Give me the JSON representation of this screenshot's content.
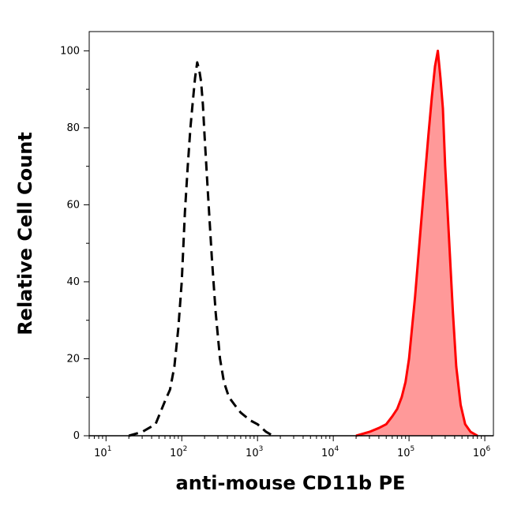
{
  "chart_data": {
    "type": "area",
    "xlabel": "anti-mouse CD11b PE",
    "ylabel": "Relative Cell Count",
    "xscale": "log",
    "xlim": [
      6,
      1300000
    ],
    "ylim": [
      0,
      105
    ],
    "grid": false,
    "x_ticks": [
      {
        "base": "10",
        "exp": "1",
        "value": 10
      },
      {
        "base": "10",
        "exp": "2",
        "value": 100
      },
      {
        "base": "10",
        "exp": "3",
        "value": 1000
      },
      {
        "base": "10",
        "exp": "4",
        "value": 10000
      },
      {
        "base": "10",
        "exp": "5",
        "value": 100000
      },
      {
        "base": "10",
        "exp": "6",
        "value": 1000000
      }
    ],
    "y_ticks": [
      "0",
      "20",
      "40",
      "60",
      "80",
      "100"
    ],
    "series": [
      {
        "style": "dashed",
        "color": "#000000",
        "fill": "none",
        "x": [
          20,
          30,
          45,
          60,
          70,
          80,
          90,
          100,
          110,
          120,
          130,
          140,
          150,
          160,
          170,
          180,
          190,
          200,
          220,
          250,
          280,
          320,
          360,
          420,
          500,
          600,
          800,
          1000,
          1300,
          1600
        ],
        "y": [
          0,
          1,
          3,
          9,
          12,
          18,
          28,
          40,
          58,
          70,
          80,
          87,
          93,
          97,
          95,
          92,
          86,
          78,
          64,
          46,
          32,
          20,
          14,
          10,
          8,
          6,
          4,
          3,
          1,
          0
        ]
      },
      {
        "style": "solid",
        "color": "#ff0000",
        "fill": "#ff9999",
        "x": [
          20000,
          30000,
          40000,
          50000,
          60000,
          70000,
          80000,
          90000,
          100000,
          120000,
          140000,
          160000,
          180000,
          200000,
          220000,
          240000,
          260000,
          280000,
          300000,
          340000,
          380000,
          420000,
          480000,
          550000,
          650000,
          800000
        ],
        "y": [
          0,
          1,
          2,
          3,
          5,
          7,
          10,
          14,
          20,
          36,
          52,
          66,
          78,
          88,
          96,
          100,
          93,
          85,
          70,
          50,
          32,
          18,
          8,
          3,
          1,
          0
        ]
      }
    ]
  }
}
